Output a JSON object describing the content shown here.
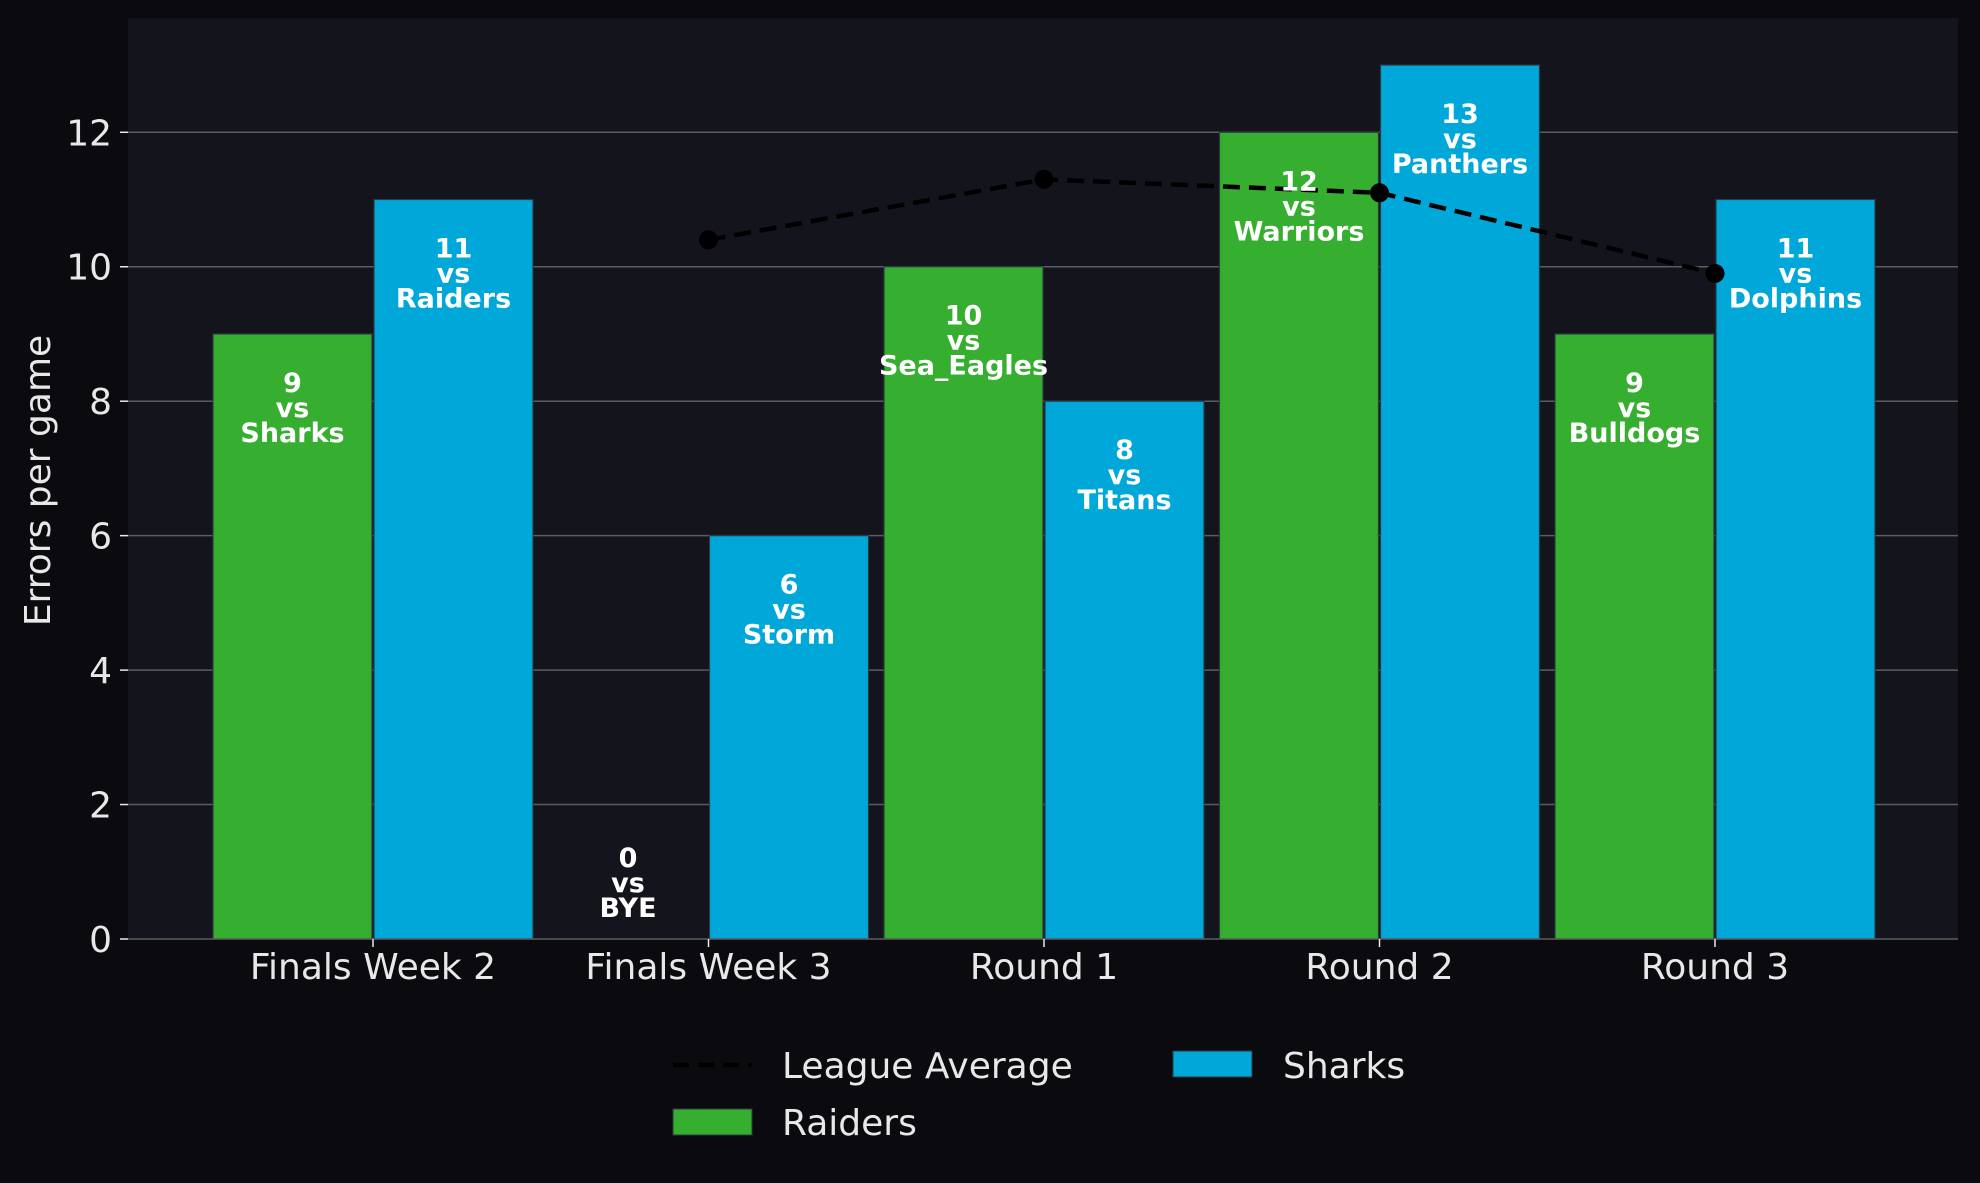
{
  "chart_data": {
    "type": "bar",
    "title": "",
    "xlabel": "",
    "ylabel": "Errors per game",
    "ylim": [
      0,
      13.7
    ],
    "yticks": [
      0,
      2,
      4,
      6,
      8,
      10,
      12
    ],
    "grid": "horizontal",
    "legend_position": "bottom-center",
    "categories": [
      "Finals Week 2",
      "Finals Week 3",
      "Round 1",
      "Round 2",
      "Round 3"
    ],
    "series": [
      {
        "name": "Raiders",
        "color": "#36ae2f",
        "values": [
          9,
          0,
          10,
          12,
          9
        ],
        "opponents": [
          "Sharks",
          "BYE",
          "Sea_Eagles",
          "Warriors",
          "Bulldogs"
        ]
      },
      {
        "name": "Sharks",
        "color": "#00a8d9",
        "values": [
          11,
          6,
          8,
          13,
          11
        ],
        "opponents": [
          "Raiders",
          "Storm",
          "Titans",
          "Panthers",
          "Dolphins"
        ]
      }
    ],
    "league_average": {
      "name": "League Average",
      "style": "dashed",
      "color": "#000000",
      "points": [
        {
          "category": "Finals Week 3",
          "value": 10.4
        },
        {
          "category": "Round 1",
          "value": 11.3
        },
        {
          "category": "Round 2",
          "value": 11.1
        },
        {
          "category": "Round 3",
          "value": 9.9
        }
      ]
    },
    "annotation_connector": "vs",
    "colors": {
      "page_background": "#0b0b0f",
      "plot_background": "#13141c",
      "grid": "#5a5c63",
      "text": "#e8e8ea",
      "label_text": "#ffffff"
    }
  }
}
